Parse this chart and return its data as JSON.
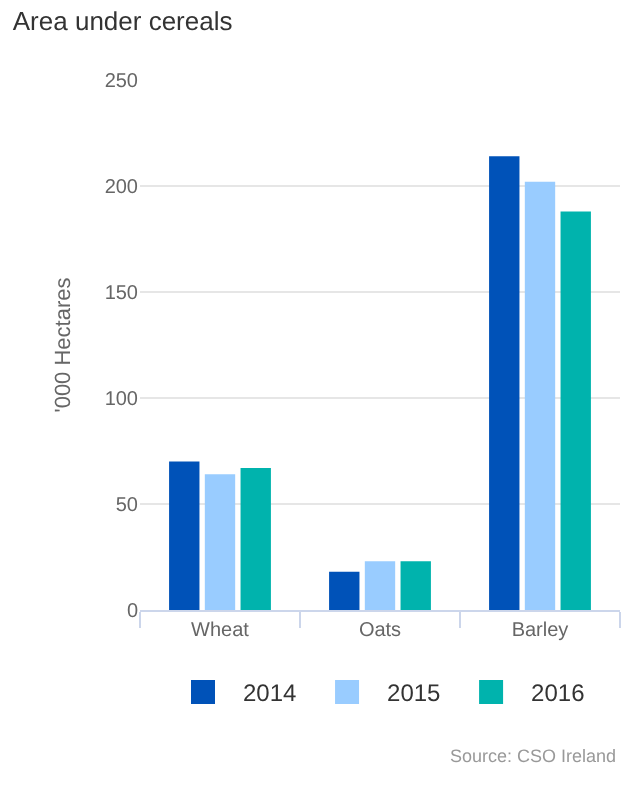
{
  "chart_data": {
    "type": "bar",
    "title": "Area under cereals",
    "ylabel": "'000 Hectares",
    "categories": [
      "Wheat",
      "Oats",
      "Barley"
    ],
    "series": [
      {
        "name": "2014",
        "color": "#0052b8",
        "values": [
          70,
          18,
          214
        ]
      },
      {
        "name": "2015",
        "color": "#99ccff",
        "values": [
          64,
          23,
          202
        ]
      },
      {
        "name": "2016",
        "color": "#00b3ad",
        "values": [
          67,
          23,
          188
        ]
      }
    ],
    "ylim": [
      0,
      250
    ],
    "yticks": [
      0,
      50,
      100,
      150,
      200,
      250
    ],
    "grid": "y",
    "legend": "bottom",
    "annotations": [
      "Source: CSO Ireland"
    ]
  }
}
